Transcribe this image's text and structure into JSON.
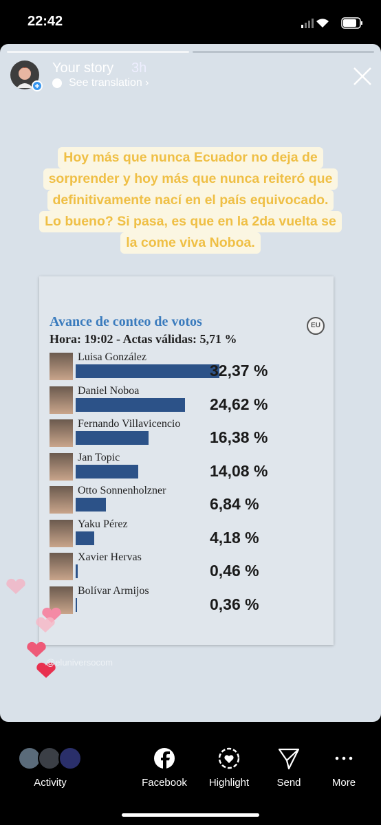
{
  "status_bar": {
    "time": "22:42"
  },
  "story_header": {
    "name": "Your story",
    "age": "3h",
    "translation": "See translation"
  },
  "caption": {
    "lines": [
      "Hoy más que nunca Ecuador no deja de",
      "sorprender y hoy más que nunca reiteró que",
      "definitivamente nací en el país equivocado.",
      "Lo bueno? Si pasa, es que en la 2da vuelta se",
      "la come viva Noboa."
    ]
  },
  "chart_data": {
    "type": "bar",
    "orientation": "horizontal",
    "title": "Avance de conteo de votos",
    "subtitle": "Hora: 19:02 - Actas válidas: 5,71 %",
    "logo": "EU",
    "categories": [
      "Luisa González",
      "Daniel Noboa",
      "Fernando Villavicencio",
      "Jan Topic",
      "Otto Sonnenholzner",
      "Yaku Pérez",
      "Xavier Hervas",
      "Bolívar Armijos"
    ],
    "values": [
      32.37,
      24.62,
      16.38,
      14.08,
      6.84,
      4.18,
      0.46,
      0.36
    ],
    "value_labels": [
      "32,37 %",
      "24,62 %",
      "16,38 %",
      "14,08 %",
      "6,84 %",
      "4,18 %",
      "0,46 %",
      "0,36 %"
    ],
    "color": "#2c5288"
  },
  "watermark": "@eluniversocom",
  "bottom_bar": {
    "items": [
      "Activity",
      "Facebook",
      "Highlight",
      "Send",
      "More"
    ]
  }
}
